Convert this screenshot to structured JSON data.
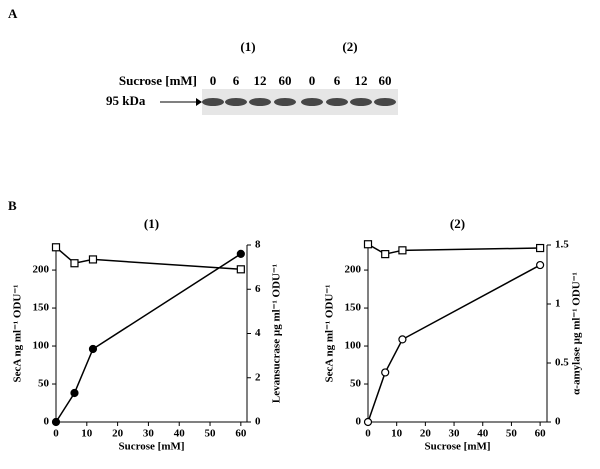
{
  "panel_a": {
    "label": "A",
    "groups": [
      "(1)",
      "(2)"
    ],
    "row_label": "Sucrose [mM]",
    "lanes": [
      "0",
      "6",
      "12",
      "60",
      "0",
      "6",
      "12",
      "60"
    ],
    "marker": "95 kDa"
  },
  "panel_b": {
    "label": "B"
  },
  "chart_data": [
    {
      "type": "line",
      "title": "(1)",
      "x_label": "Sucrose [mM]",
      "y_label": "SecA ng ml⁻¹ ODU⁻¹",
      "y2_label": "Levansucrase µg ml⁻¹ ODU⁻¹",
      "x": [
        0,
        6,
        12,
        60
      ],
      "xlim": [
        0,
        62
      ],
      "xticks": [
        0,
        10,
        20,
        30,
        40,
        50,
        60
      ],
      "ylim": [
        0,
        233
      ],
      "yticks": [
        0,
        50,
        100,
        150,
        200
      ],
      "y2lim": [
        0,
        8
      ],
      "y2ticks": [
        0,
        2,
        4,
        6,
        8
      ],
      "series": [
        {
          "color": "#000000",
          "marker": "square",
          "filled": false,
          "axis": "y",
          "values": [
            230,
            209,
            214,
            201
          ]
        },
        {
          "color": "#000000",
          "marker": "circle",
          "filled": true,
          "axis": "y2",
          "values": [
            0,
            1.31,
            3.3,
            7.6
          ]
        }
      ]
    },
    {
      "type": "line",
      "title": "(2)",
      "x_label": "Sucrose [mM]",
      "y_label": "SecA ng ml⁻¹ ODU⁻¹",
      "y2_label": "α-amylase µg ml⁻¹ ODU⁻¹",
      "x": [
        0,
        6,
        12,
        60
      ],
      "xlim": [
        0,
        62.4
      ],
      "xticks": [
        0,
        10,
        20,
        30,
        40,
        50,
        60
      ],
      "ylim": [
        0,
        233
      ],
      "yticks": [
        0,
        50,
        100,
        150,
        200
      ],
      "y2lim": [
        0,
        1.5
      ],
      "y2ticks": [
        0,
        0.5,
        1,
        1.5
      ],
      "series": [
        {
          "color": "#000000",
          "marker": "square",
          "filled": false,
          "axis": "y",
          "values": [
            234,
            221,
            226,
            229
          ]
        },
        {
          "color": "#000000",
          "marker": "circle",
          "filled": false,
          "axis": "y2",
          "values": [
            0,
            0.42,
            0.7,
            1.33
          ]
        }
      ]
    }
  ]
}
